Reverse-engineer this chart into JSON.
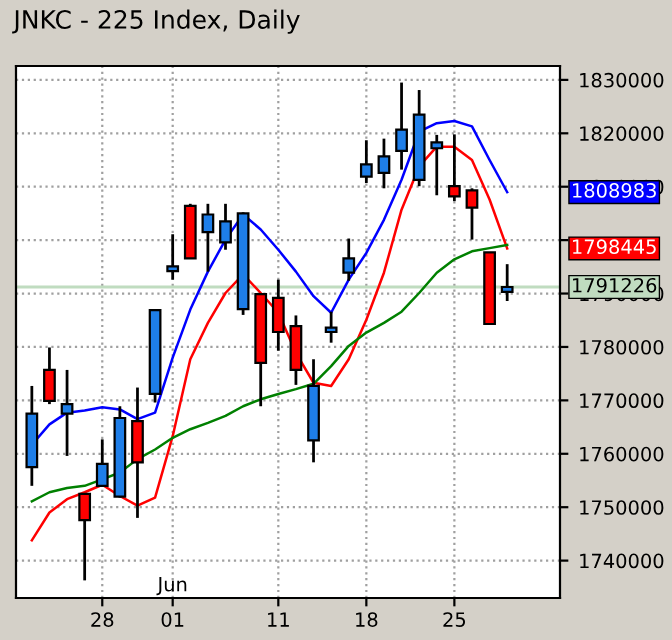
{
  "chart_data": {
    "type": "candlestick",
    "title": "JNKC - 225 Index, Daily",
    "categories": [
      null,
      null,
      null,
      null,
      "28",
      null,
      null,
      null,
      "01",
      null,
      null,
      null,
      null,
      null,
      "11",
      null,
      null,
      null,
      null,
      "18",
      null,
      null,
      null,
      null,
      "25",
      null,
      null,
      null
    ],
    "ohlc": [
      [
        1757500,
        1772700,
        1754000,
        1767500
      ],
      [
        1775700,
        1779900,
        1769300,
        1769900
      ],
      [
        1767500,
        1775700,
        1759600,
        1769300
      ],
      [
        1752500,
        1752500,
        1736300,
        1747600
      ],
      [
        1754000,
        1762700,
        1754000,
        1758100
      ],
      [
        1752000,
        1768900,
        1751800,
        1766700
      ],
      [
        1766100,
        1772400,
        1748000,
        1758400
      ],
      [
        1771200,
        1786900,
        1769600,
        1786900
      ],
      [
        1794200,
        1801100,
        1792600,
        1795100
      ],
      [
        1806400,
        1806800,
        1796600,
        1796600
      ],
      [
        1801500,
        1806800,
        1794100,
        1804800
      ],
      [
        1799600,
        1806800,
        1798200,
        1803500
      ],
      [
        1787100,
        1805200,
        1786000,
        1805000
      ],
      [
        1789900,
        1789900,
        1768900,
        1777000
      ],
      [
        1789200,
        1792600,
        1779300,
        1782800
      ],
      [
        1783900,
        1785900,
        1772900,
        1775700
      ],
      [
        1762500,
        1777700,
        1758400,
        1772700
      ],
      [
        1782800,
        1786600,
        1780800,
        1783600
      ],
      [
        1793900,
        1800300,
        1792400,
        1796600
      ],
      [
        1811900,
        1818700,
        1810700,
        1814200
      ],
      [
        1812600,
        1819000,
        1809700,
        1815700
      ],
      [
        1816700,
        1829500,
        1813200,
        1820700
      ],
      [
        1811300,
        1828100,
        1810100,
        1823500
      ],
      [
        1817200,
        1819700,
        1808400,
        1818300
      ],
      [
        1810100,
        1819800,
        1807300,
        1808200
      ],
      [
        1809300,
        1809700,
        1800100,
        1806100
      ],
      [
        1797700,
        1797700,
        1784300,
        1784300
      ],
      [
        1790300,
        1795500,
        1788600,
        1791226
      ]
    ],
    "series": [
      {
        "type": "line",
        "color": "#0000ff",
        "values": [
          1761700,
          1765500,
          1767700,
          1768100,
          1768700,
          1768300,
          1766500,
          1767700,
          1778000,
          1787000,
          1794100,
          1800100,
          1804800,
          1802000,
          1798200,
          1794100,
          1789500,
          1786400,
          1792600,
          1797600,
          1803800,
          1811300,
          1820300,
          1821900,
          1822300,
          1821300,
          1815000,
          1808983
        ]
      },
      {
        "type": "line",
        "color": "#ff0000",
        "values": [
          1743800,
          1749000,
          1751500,
          1752800,
          1754200,
          1752100,
          1750300,
          1751800,
          1763300,
          1777700,
          1784500,
          1790100,
          1793600,
          1790100,
          1786400,
          1778900,
          1773300,
          1772700,
          1777700,
          1785100,
          1793900,
          1805700,
          1813800,
          1817500,
          1817500,
          1815000,
          1807600,
          1798445
        ]
      },
      {
        "type": "line",
        "color": "#008000",
        "values": [
          1751100,
          1752800,
          1753600,
          1754000,
          1755200,
          1756500,
          1759000,
          1760800,
          1763000,
          1764600,
          1765800,
          1767100,
          1768900,
          1770200,
          1771200,
          1772100,
          1773100,
          1776400,
          1780200,
          1782700,
          1784500,
          1786600,
          1790100,
          1793900,
          1796400,
          1797900,
          1798500,
          1799100
        ]
      }
    ],
    "ylim": [
      1733000,
      1832600
    ],
    "yticks": [
      1740000,
      1750000,
      1760000,
      1770000,
      1780000,
      1790000,
      {
        "value": 1800000,
        "label": null
      },
      1810000,
      1820000,
      1830000
    ],
    "grid": true,
    "ref_lines": [
      {
        "axis": "y",
        "value": 1791226,
        "label": "1791226",
        "color": "#c0dcc0"
      }
    ],
    "annotations": [
      "1808983",
      "1798445",
      "Jun"
    ]
  }
}
